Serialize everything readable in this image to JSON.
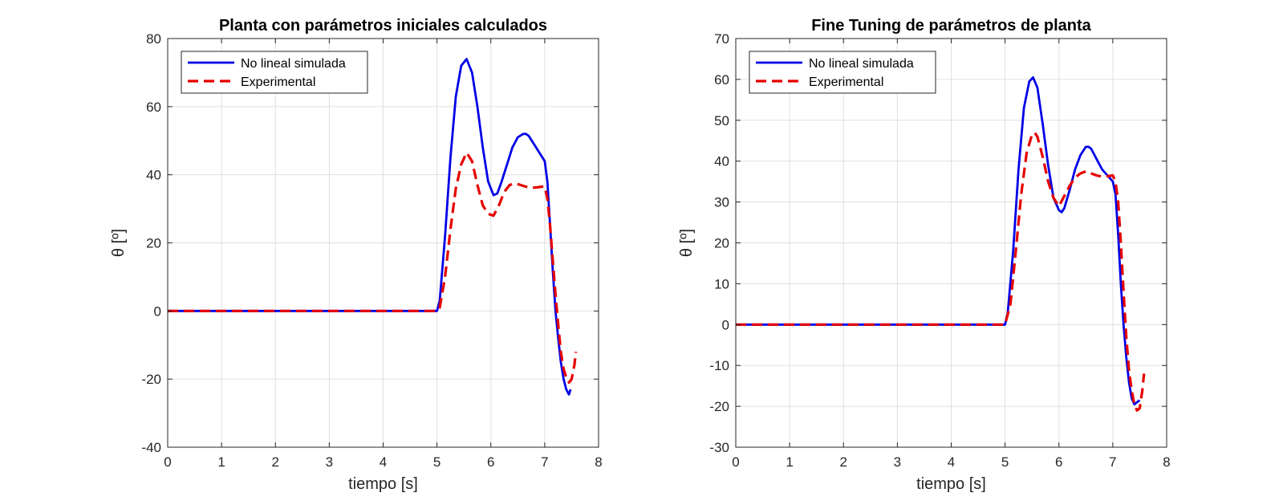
{
  "colors": {
    "sim": "#0000e6",
    "exp": "#e60000",
    "grid": "#e0e0e0",
    "axis": "#262626"
  },
  "chart_data": [
    {
      "type": "line",
      "title": "Planta con parámetros iniciales calculados",
      "xlabel": "tiempo [s]",
      "ylabel": "θ [º]",
      "xlim": [
        0,
        8
      ],
      "ylim": [
        -40,
        80
      ],
      "xticks": [
        0,
        1,
        2,
        3,
        4,
        5,
        6,
        7,
        8
      ],
      "yticks": [
        -40,
        -20,
        0,
        20,
        40,
        60,
        80
      ],
      "grid": true,
      "legend_position": "top-left",
      "series": [
        {
          "name": "No lineal simulada",
          "style": "solid",
          "x": [
            0,
            5.0,
            5.05,
            5.15,
            5.25,
            5.35,
            5.45,
            5.55,
            5.65,
            5.75,
            5.85,
            5.95,
            6.05,
            6.12,
            6.2,
            6.3,
            6.4,
            6.5,
            6.6,
            6.65,
            6.7,
            6.8,
            6.9,
            7.0,
            7.05,
            7.1,
            7.15,
            7.2,
            7.25,
            7.3,
            7.35,
            7.4,
            7.45,
            7.48
          ],
          "y": [
            0,
            0,
            3,
            22,
            45,
            63,
            72,
            74,
            70,
            60,
            48,
            38,
            34,
            34.5,
            38,
            43,
            48,
            51,
            52,
            52,
            51.5,
            49,
            46.5,
            44,
            38,
            25,
            12,
            0,
            -8,
            -15,
            -20,
            -23,
            -24.5,
            -23
          ]
        },
        {
          "name": "Experimental",
          "style": "dashed",
          "x": [
            0,
            5.0,
            5.05,
            5.15,
            5.25,
            5.35,
            5.45,
            5.55,
            5.65,
            5.75,
            5.85,
            5.95,
            6.05,
            6.15,
            6.25,
            6.35,
            6.45,
            6.55,
            6.65,
            6.75,
            6.85,
            6.95,
            7.0,
            7.05,
            7.1,
            7.15,
            7.2,
            7.25,
            7.3,
            7.35,
            7.4,
            7.45,
            7.5,
            7.55,
            7.58
          ],
          "y": [
            0,
            0,
            1,
            10,
            24,
            36,
            43,
            46.5,
            44,
            37,
            31,
            28.5,
            28,
            31,
            35,
            37,
            37.5,
            37,
            36.5,
            36.2,
            36.3,
            36.5,
            36.5,
            33,
            25,
            15,
            5,
            -4,
            -12,
            -17,
            -19.5,
            -21,
            -20,
            -16,
            -12
          ]
        }
      ]
    },
    {
      "type": "line",
      "title": "Fine Tuning de parámetros de planta",
      "xlabel": "tiempo [s]",
      "ylabel": "θ [º]",
      "xlim": [
        0,
        8
      ],
      "ylim": [
        -30,
        70
      ],
      "xticks": [
        0,
        1,
        2,
        3,
        4,
        5,
        6,
        7,
        8
      ],
      "yticks": [
        -30,
        -20,
        -10,
        0,
        10,
        20,
        30,
        40,
        50,
        60,
        70
      ],
      "grid": true,
      "legend_position": "top-left",
      "series": [
        {
          "name": "No lineal simulada",
          "style": "solid",
          "x": [
            0,
            5.0,
            5.05,
            5.15,
            5.25,
            5.35,
            5.45,
            5.52,
            5.6,
            5.7,
            5.8,
            5.9,
            6.0,
            6.05,
            6.1,
            6.2,
            6.3,
            6.4,
            6.5,
            6.55,
            6.6,
            6.7,
            6.8,
            6.9,
            7.0,
            7.05,
            7.1,
            7.15,
            7.2,
            7.25,
            7.3,
            7.35,
            7.4,
            7.45,
            7.5
          ],
          "y": [
            0,
            0,
            3,
            18,
            38,
            53,
            59.5,
            60.5,
            58,
            49,
            39,
            31,
            28,
            27.5,
            28.5,
            33,
            38,
            41.5,
            43.5,
            43.5,
            43,
            40.5,
            38,
            36.5,
            35,
            32,
            22,
            10,
            0,
            -8,
            -14,
            -18,
            -19.5,
            -19,
            -18.5
          ]
        },
        {
          "name": "Experimental",
          "style": "dashed",
          "x": [
            0,
            5.0,
            5.1,
            5.2,
            5.3,
            5.4,
            5.5,
            5.55,
            5.6,
            5.7,
            5.8,
            5.9,
            6.0,
            6.1,
            6.2,
            6.3,
            6.4,
            6.5,
            6.6,
            6.7,
            6.8,
            6.9,
            7.0,
            7.05,
            7.1,
            7.15,
            7.2,
            7.25,
            7.3,
            7.35,
            7.4,
            7.45,
            7.5,
            7.55,
            7.58
          ],
          "y": [
            0,
            0,
            5,
            18,
            32,
            42,
            46.5,
            47,
            46,
            41,
            35,
            31,
            29,
            31.5,
            34,
            36,
            37,
            37.5,
            37,
            36.5,
            36.2,
            36.3,
            36.5,
            35,
            30,
            20,
            8,
            -3,
            -11,
            -16,
            -19.5,
            -21,
            -20.5,
            -16,
            -12
          ]
        }
      ]
    }
  ]
}
